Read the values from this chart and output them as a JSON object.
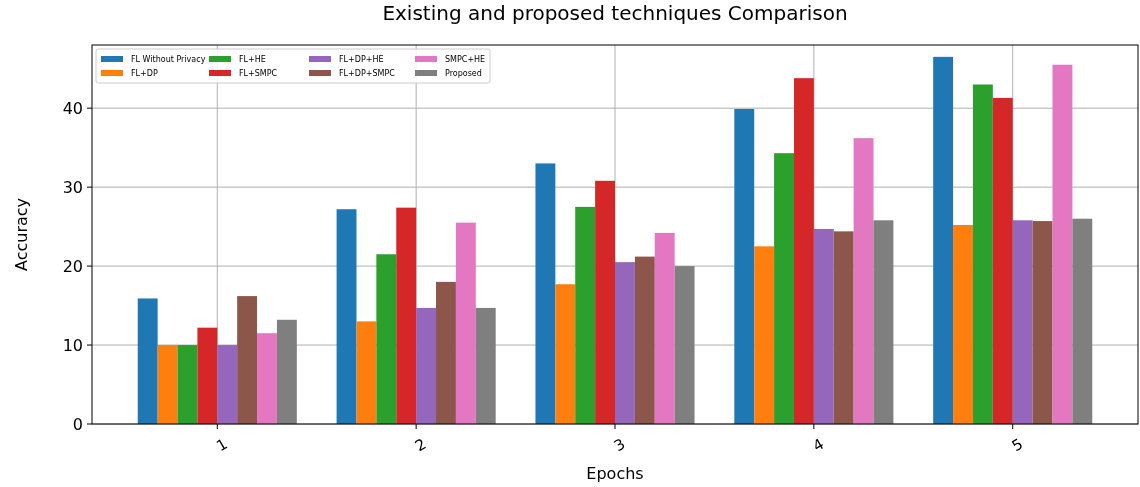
{
  "chart_data": {
    "type": "bar",
    "title": "Existing and proposed techniques Comparison",
    "xlabel": "Epochs",
    "ylabel": "Accuracy",
    "categories": [
      "1",
      "2",
      "3",
      "4",
      "5"
    ],
    "series": [
      {
        "name": "FL Without Privacy",
        "color": "#1f77b4",
        "values": [
          15.9,
          27.2,
          33.0,
          39.9,
          46.5
        ]
      },
      {
        "name": "FL+DP",
        "color": "#ff7f0e",
        "values": [
          10.0,
          13.0,
          17.7,
          22.5,
          25.2
        ]
      },
      {
        "name": "FL+HE",
        "color": "#2ca02c",
        "values": [
          10.0,
          21.5,
          27.5,
          34.3,
          43.0
        ]
      },
      {
        "name": "FL+SMPC",
        "color": "#d62728",
        "values": [
          12.2,
          27.4,
          30.8,
          43.8,
          41.3
        ]
      },
      {
        "name": "FL+DP+HE",
        "color": "#9467bd",
        "values": [
          10.0,
          14.7,
          20.5,
          24.7,
          25.8
        ]
      },
      {
        "name": "FL+DP+SMPC",
        "color": "#8c564b",
        "values": [
          16.2,
          18.0,
          21.2,
          24.4,
          25.7
        ]
      },
      {
        "name": "SMPC+HE",
        "color": "#e377c2",
        "values": [
          11.5,
          25.5,
          24.2,
          36.2,
          45.5
        ]
      },
      {
        "name": "Proposed",
        "color": "#7f7f7f",
        "values": [
          13.2,
          14.7,
          20.0,
          25.8,
          26.0
        ]
      }
    ],
    "ylim": [
      0,
      48
    ],
    "yticks": [
      0,
      10,
      20,
      30,
      40
    ],
    "grid": true,
    "legend": "top left"
  }
}
